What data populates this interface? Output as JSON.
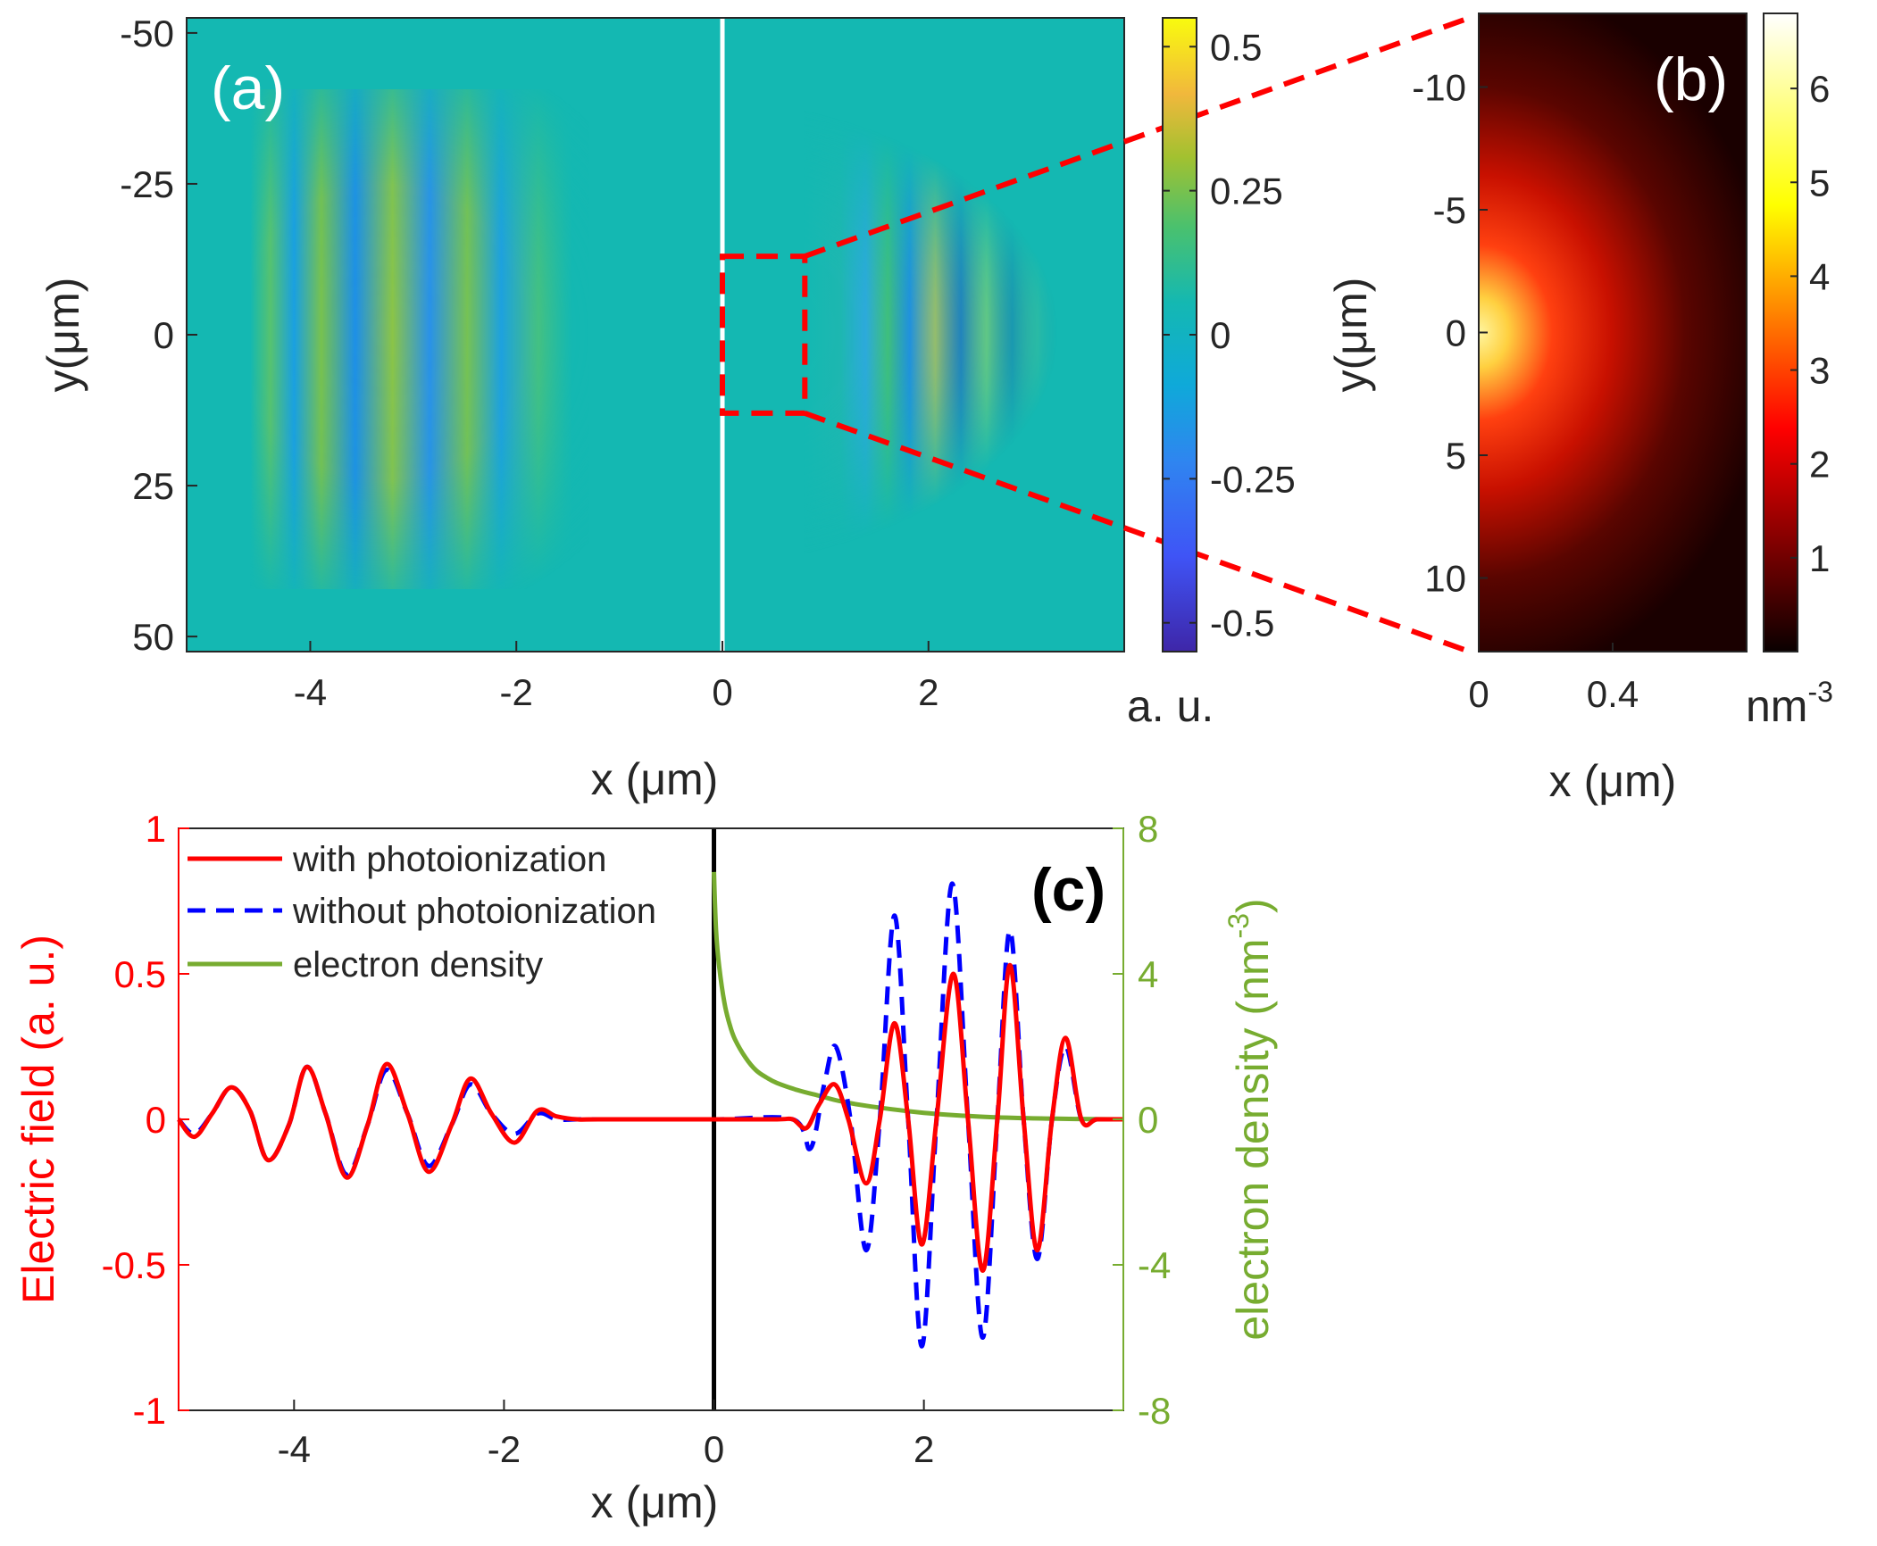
{
  "colors": {
    "red": "#ff0000",
    "blue": "#0000ff",
    "green": "#77ac30",
    "zoom_box": "#ff0000",
    "panel_label_light": "#ffffff",
    "panel_label_dark": "#000000",
    "background_field": "#14b8b2"
  },
  "chart_data": [
    {
      "id": "a",
      "type": "heatmap",
      "panel_label": "(a)",
      "xlabel": "x (μm)",
      "ylabel": "y(μm)",
      "xlim": [
        -5.2,
        3.9
      ],
      "ylim": [
        -52.5,
        52.5
      ],
      "xticks": [
        -4,
        -2,
        0,
        2
      ],
      "xtick_labels": [
        "-4",
        "-2",
        "0",
        "2"
      ],
      "yticks": [
        -50,
        -25,
        0,
        25,
        50
      ],
      "ytick_labels": [
        "-50",
        "-25",
        "0",
        "25",
        "50"
      ],
      "colormap": "parula",
      "colorbar": {
        "range": [
          -0.55,
          0.55
        ],
        "ticks": [
          0.5,
          0.25,
          0,
          -0.25,
          -0.5
        ],
        "tick_labels": [
          "0.5",
          "0.25",
          "0",
          "-0.25",
          "-0.5"
        ],
        "unit_label": "a. u."
      },
      "boundary_x": 0,
      "zoom_box": {
        "x": [
          0,
          0.8
        ],
        "y": [
          -13,
          13
        ]
      },
      "description": "Electric field: weak pulse on the left (x<0), strong focused pulse on the right (x>0)"
    },
    {
      "id": "b",
      "type": "heatmap",
      "panel_label": "(b)",
      "xlabel": "x (μm)",
      "ylabel": "y(μm)",
      "xlim": [
        0,
        0.8
      ],
      "ylim": [
        -13,
        13
      ],
      "xticks": [
        0,
        0.4
      ],
      "xtick_labels": [
        "0",
        "0.4"
      ],
      "yticks": [
        -10,
        -5,
        0,
        5,
        10
      ],
      "ytick_labels": [
        "-10",
        "-5",
        "0",
        "5",
        "10"
      ],
      "colormap": "hot",
      "colorbar": {
        "range": [
          0,
          6.8
        ],
        "ticks": [
          6,
          5,
          4,
          3,
          2,
          1
        ],
        "tick_labels": [
          "6",
          "5",
          "4",
          "3",
          "2",
          "1"
        ],
        "unit_label": "nm",
        "unit_exponent": "-3"
      },
      "description": "Electron density, maximal (~6.8) at x=0, y=0, decaying in x and |y|"
    },
    {
      "id": "c",
      "type": "line",
      "panel_label": "(c)",
      "xlabel": "x (μm)",
      "ylabel_left": "Electric field (a. u.)",
      "ylabel_right": "electron density (nm",
      "ylabel_right_exponent": "-3",
      "ylabel_right_close": ")",
      "xlim": [
        -5.1,
        3.9
      ],
      "ylim_left": [
        -1,
        1
      ],
      "ylim_right": [
        -8,
        8
      ],
      "xticks": [
        -4,
        -2,
        0,
        2
      ],
      "xtick_labels": [
        "-4",
        "-2",
        "0",
        "2"
      ],
      "yticks_left": [
        1,
        0.5,
        0,
        -0.5,
        -1
      ],
      "ytick_labels_left": [
        "1",
        "0.5",
        "0",
        "-0.5",
        "-1"
      ],
      "yticks_right": [
        8,
        4,
        0,
        -4,
        -8
      ],
      "ytick_labels_right": [
        "8",
        "4",
        "0",
        "-4",
        "-8"
      ],
      "vline_x": 0,
      "legend_position": "top-left",
      "series": [
        {
          "name": "with photoionization",
          "style": "solid",
          "color": "red",
          "x": [
            -5.1,
            -4.95,
            -4.78,
            -4.6,
            -4.42,
            -4.25,
            -4.05,
            -3.88,
            -3.7,
            -3.5,
            -3.3,
            -3.12,
            -2.92,
            -2.72,
            -2.5,
            -2.32,
            -2.12,
            -1.9,
            -1.68,
            -1.5,
            -1.3,
            -1.1,
            0,
            0.6,
            0.75,
            0.88,
            1.0,
            1.15,
            1.28,
            1.45,
            1.58,
            1.72,
            1.85,
            1.98,
            2.12,
            2.28,
            2.42,
            2.56,
            2.7,
            2.82,
            2.95,
            3.08,
            3.22,
            3.35,
            3.5,
            3.65,
            3.9
          ],
          "y": [
            0,
            -0.06,
            0.02,
            0.11,
            0.03,
            -0.14,
            -0.02,
            0.18,
            0.02,
            -0.2,
            -0.02,
            0.19,
            0.02,
            -0.18,
            -0.02,
            0.14,
            0.02,
            -0.08,
            0.03,
            0.01,
            0,
            0,
            0,
            0,
            0,
            -0.03,
            0.05,
            0.12,
            0,
            -0.22,
            0,
            0.33,
            0,
            -0.43,
            0,
            0.5,
            0,
            -0.52,
            0,
            0.53,
            0,
            -0.45,
            0,
            0.28,
            0,
            0,
            0
          ]
        },
        {
          "name": "without photoionization",
          "style": "dashed",
          "color": "blue",
          "x": [
            -5.1,
            -4.95,
            -4.78,
            -4.6,
            -4.42,
            -4.25,
            -4.05,
            -3.88,
            -3.7,
            -3.5,
            -3.3,
            -3.12,
            -2.92,
            -2.72,
            -2.5,
            -2.32,
            -2.12,
            -1.9,
            -1.68,
            -1.5,
            -1.3,
            -1.1,
            0,
            0.75,
            0.92,
            1.05,
            1.16,
            1.3,
            1.45,
            1.58,
            1.72,
            1.85,
            1.98,
            2.12,
            2.27,
            2.42,
            2.56,
            2.7,
            2.82,
            2.95,
            3.08,
            3.22,
            3.35,
            3.5,
            3.65,
            3.9
          ],
          "y": [
            0,
            -0.05,
            0.02,
            0.11,
            0.03,
            -0.14,
            -0.02,
            0.18,
            0.02,
            -0.19,
            -0.02,
            0.17,
            0.02,
            -0.16,
            -0.02,
            0.12,
            0.02,
            -0.05,
            0.02,
            0,
            0,
            0,
            0,
            0,
            -0.1,
            0.12,
            0.25,
            0,
            -0.45,
            0,
            0.7,
            0,
            -0.78,
            0,
            0.81,
            0,
            -0.75,
            0,
            0.65,
            0,
            -0.48,
            0,
            0.25,
            0,
            0,
            0
          ]
        },
        {
          "name": "electron density",
          "style": "solid",
          "color": "green",
          "axis": "right",
          "x": [
            0,
            0.02,
            0.05,
            0.1,
            0.15,
            0.2,
            0.3,
            0.4,
            0.5,
            0.6,
            0.8,
            1.0,
            1.2,
            1.5,
            2.0,
            2.5,
            3.0,
            3.5,
            3.9
          ],
          "y": [
            6.8,
            5.2,
            4.2,
            3.2,
            2.6,
            2.2,
            1.7,
            1.35,
            1.15,
            1.0,
            0.8,
            0.65,
            0.5,
            0.35,
            0.18,
            0.08,
            0.03,
            0.01,
            0.0
          ]
        }
      ]
    }
  ]
}
